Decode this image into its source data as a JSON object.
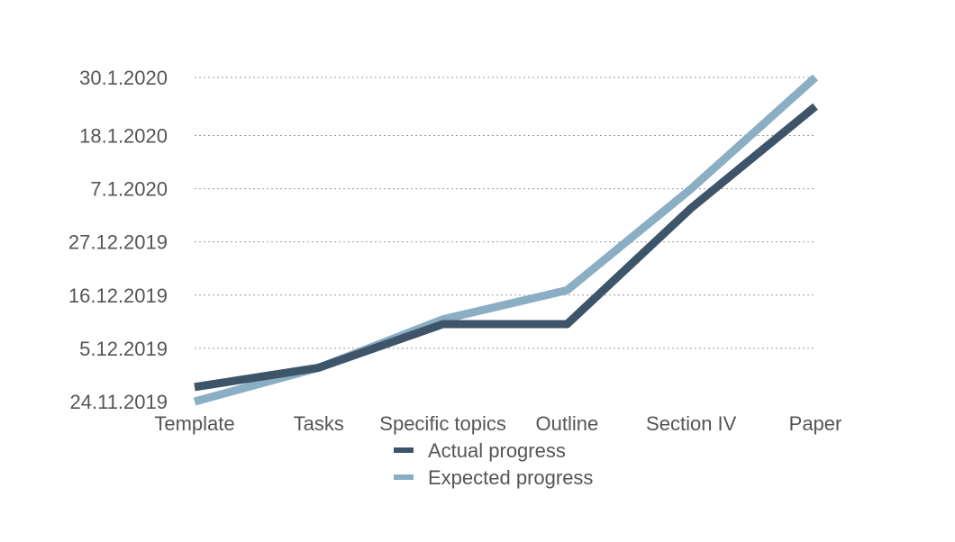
{
  "chart_data": {
    "type": "line",
    "title": "",
    "xlabel": "",
    "ylabel": "",
    "categories": [
      "Template",
      "Tasks",
      "Specific topics",
      "Outline",
      "Section IV",
      "Paper"
    ],
    "y_ticks": [
      "24.11.2019",
      "5.12.2019",
      "16.12.2019",
      "27.12.2019",
      "7.1.2020",
      "18.1.2020",
      "30.1.2020"
    ],
    "ylim": [
      "2019-11-24",
      "2020-01-30"
    ],
    "grid": true,
    "legend_position": "bottom",
    "series": [
      {
        "name": "Actual progress",
        "color": "#3d5469",
        "values": [
          "2019-11-27",
          "2019-12-01",
          "2019-12-10",
          "2019-12-10",
          "2020-01-03",
          "2020-01-24"
        ]
      },
      {
        "name": "Expected progress",
        "color": "#8aaec4",
        "values": [
          "2019-11-24",
          "2019-12-01",
          "2019-12-11",
          "2019-12-17",
          "2020-01-07",
          "2020-01-30"
        ]
      }
    ]
  }
}
